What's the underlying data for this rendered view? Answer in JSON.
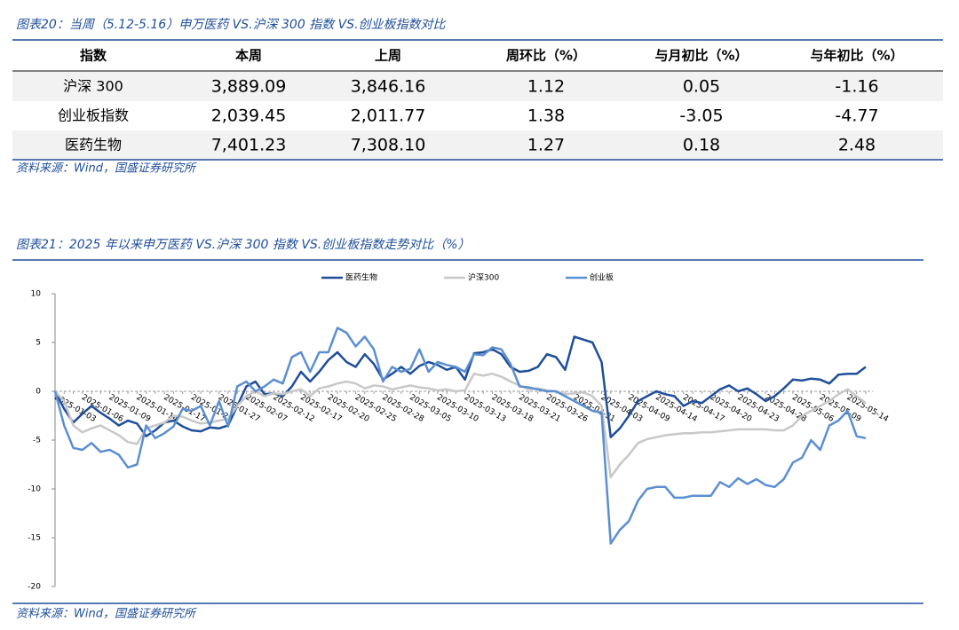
{
  "figure20": {
    "title": "图表20：当周（5.12-5.16）申万医药 VS.沪深 300 指数 VS.创业板指数对比",
    "table": {
      "header": [
        "指数",
        "本周",
        "上周",
        "周环比（%）",
        "与月初比（%）",
        "与年初比（%）"
      ],
      "rows": [
        [
          "沪深 300",
          "3,889.09",
          "3,846.16",
          "1.12",
          "0.05",
          "-1.16"
        ],
        [
          "创业板指数",
          "2,039.45",
          "2,011.77",
          "1.38",
          "-3.05",
          "-4.77"
        ],
        [
          "医药生物",
          "7,401.23",
          "7,308.10",
          "1.27",
          "0.18",
          "2.48"
        ]
      ]
    },
    "source": "资料来源：Wind，国盛证券研究所"
  },
  "figure21": {
    "title": "图表21：2025 年以来申万医药 VS.沪深 300 指数 VS.创业板指数走势对比（%）",
    "source": "资料来源：Wind，国盛证券研究所"
  },
  "chart_data": {
    "type": "line",
    "categories": [
      "2025-01-03",
      null,
      null,
      "2025-01-06",
      null,
      null,
      "2025-01-09",
      null,
      null,
      "2025-01-14",
      null,
      null,
      "2025-01-17",
      null,
      null,
      "2025-01-22",
      null,
      null,
      "2025-01-27",
      null,
      null,
      "2025-02-07",
      null,
      null,
      "2025-02-12",
      null,
      null,
      "2025-02-17",
      null,
      null,
      "2025-02-20",
      null,
      null,
      "2025-02-25",
      null,
      null,
      "2025-02-28",
      null,
      null,
      "2025-03-05",
      null,
      null,
      "2025-03-10",
      null,
      null,
      "2025-03-13",
      null,
      null,
      "2025-03-18",
      null,
      null,
      "2025-03-21",
      null,
      null,
      "2025-03-26",
      null,
      null,
      "2025-03-31",
      null,
      null,
      "2025-04-03",
      null,
      null,
      "2025-04-09",
      null,
      null,
      "2025-04-14",
      null,
      null,
      "2025-04-17",
      null,
      null,
      "2025-04-20",
      null,
      null,
      "2025-04-23",
      null,
      null,
      "2025-04-28",
      null,
      null,
      "2025-05-06",
      null,
      null,
      "2025-05-09",
      null,
      null,
      "2025-05-14",
      null,
      null
    ],
    "series": [
      {
        "name": "医药生物",
        "color": "#1f4e9a",
        "values": [
          0,
          -1.8,
          -3.2,
          -2.3,
          -1.5,
          -2.2,
          -2.8,
          -3.5,
          -3.0,
          -3.3,
          -4.6,
          -4.0,
          -3.2,
          -3.0,
          -3.6,
          -4.0,
          -4.1,
          -3.7,
          -3.8,
          -3.5,
          -1.5,
          0.5,
          1.0,
          -0.3,
          -0.2,
          -0.5,
          0.5,
          2.0,
          1.0,
          2.0,
          3.2,
          4.0,
          3.0,
          2.5,
          3.8,
          2.8,
          1.2,
          1.8,
          2.5,
          1.8,
          2.6,
          3.0,
          2.7,
          2.2,
          2.5,
          1.2,
          3.9,
          4.0,
          4.3,
          3.8,
          2.5,
          2.0,
          2.1,
          2.5,
          3.8,
          3.5,
          2.2,
          5.6,
          5.3,
          5.0,
          3.0,
          -4.7,
          -3.8,
          -2.5,
          -1.0,
          -0.5,
          0,
          -0.3,
          -0.5,
          -1.5,
          -1.0,
          -1.2,
          -0.5,
          0.2,
          0.6,
          0,
          0.3,
          -0.3,
          -1.0,
          -0.5,
          0.3,
          1.2,
          1.1,
          1.3,
          1.2,
          0.8,
          1.7,
          1.8,
          1.8,
          2.5
        ]
      },
      {
        "name": "沪深300",
        "color": "#c8c8c8",
        "values": [
          0,
          -1,
          -3.5,
          -4.2,
          -3.8,
          -3.5,
          -4,
          -4.5,
          -5.2,
          -5.4,
          -3.8,
          -3.5,
          -3.2,
          -2.5,
          -2.6,
          -3.0,
          -3.3,
          -3.2,
          -3.0,
          -2.8,
          -1.5,
          -0.5,
          0,
          -0.5,
          -0.2,
          -0.3,
          0,
          0.2,
          -0.5,
          0.3,
          0.5,
          0.8,
          1.0,
          0.8,
          0.3,
          0.6,
          0.5,
          0.2,
          0.4,
          0.6,
          0.4,
          0.3,
          0.1,
          0.2,
          0,
          0.1,
          1.8,
          1.6,
          1.8,
          1.5,
          1.0,
          0.6,
          0.2,
          0.3,
          0.1,
          0,
          -0.3,
          -0.2,
          -0.1,
          -0.5,
          -1.5,
          -8.8,
          -7.5,
          -6.5,
          -5.3,
          -4.9,
          -4.7,
          -4.5,
          -4.4,
          -4.3,
          -4.3,
          -4.2,
          -4.2,
          -4.1,
          -4.0,
          -3.9,
          -3.9,
          -3.9,
          -3.9,
          -4.0,
          -4.0,
          -3.5,
          -2.5,
          -2.0,
          -1.5,
          -1.0,
          -0.3,
          0.2,
          -0.5,
          -1.2
        ]
      },
      {
        "name": "创业板",
        "color": "#5b8fd0",
        "values": [
          0,
          -3.5,
          -5.8,
          -6.0,
          -5.3,
          -6.2,
          -6.0,
          -6.5,
          -7.8,
          -7.5,
          -3.5,
          -4.8,
          -4.3,
          -3.6,
          -1.8,
          -2.0,
          -1.5,
          -3.5,
          -1.0,
          -3.6,
          0.5,
          1.0,
          0,
          0.5,
          1.2,
          0.8,
          3.5,
          4.0,
          2.0,
          4.0,
          4.0,
          6.5,
          6.0,
          4.6,
          5.6,
          4.3,
          1.0,
          2.5,
          2.0,
          2.3,
          4.3,
          2.0,
          3.0,
          2.7,
          2.5,
          2.0,
          3.8,
          3.7,
          4.5,
          4.3,
          2.8,
          0.5,
          0.4,
          0.2,
          0,
          0,
          -0.5,
          -1.0,
          -1.5,
          -2.0,
          -2.2,
          -15.6,
          -14.2,
          -13.3,
          -11.2,
          -10.0,
          -9.8,
          -9.8,
          -10.9,
          -10.9,
          -10.7,
          -10.7,
          -10.7,
          -9.3,
          -9.8,
          -8.9,
          -9.5,
          -9.0,
          -9.6,
          -9.8,
          -9.0,
          -7.3,
          -6.8,
          -5.0,
          -6.0,
          -3.5,
          -3.0,
          -2.0,
          -4.6,
          -4.8
        ]
      }
    ],
    "ylim": [
      -20,
      10
    ],
    "yticks": [
      10,
      5,
      0,
      -5,
      -10,
      -15,
      -20
    ],
    "grid": false,
    "legend": "top"
  }
}
